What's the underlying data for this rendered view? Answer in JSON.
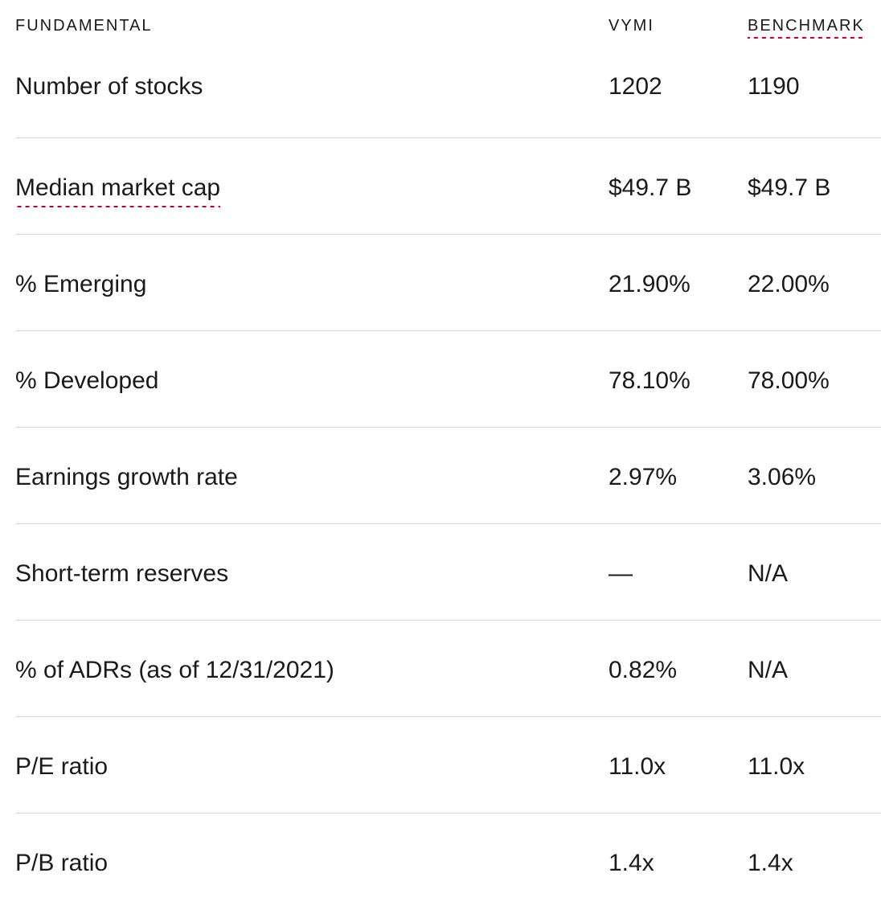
{
  "header": {
    "fundamental": "FUNDAMENTAL",
    "vymi": "VYMI",
    "benchmark": "BENCHMARK"
  },
  "rows": [
    {
      "label": "Number of stocks",
      "vymi": "1202",
      "benchmark": "1190"
    },
    {
      "label": "Median market cap",
      "vymi": "$49.7 B",
      "benchmark": "$49.7 B"
    },
    {
      "label": "% Emerging",
      "vymi": "21.90%",
      "benchmark": "22.00%"
    },
    {
      "label": "% Developed",
      "vymi": "78.10%",
      "benchmark": "78.00%"
    },
    {
      "label": "Earnings growth rate",
      "vymi": "2.97%",
      "benchmark": "3.06%"
    },
    {
      "label": "Short-term reserves",
      "vymi": "—",
      "benchmark": "N/A"
    },
    {
      "label": "% of ADRs (as of 12/31/2021)",
      "vymi": "0.82%",
      "benchmark": "N/A"
    },
    {
      "label": "P/E ratio",
      "vymi": "11.0x",
      "benchmark": "11.0x"
    },
    {
      "label": "P/B ratio",
      "vymi": "1.4x",
      "benchmark": "1.4x"
    }
  ],
  "colors": {
    "accent_dotted": "#c2002f",
    "divider": "#d9d9d9",
    "text": "#1a1a1a"
  }
}
